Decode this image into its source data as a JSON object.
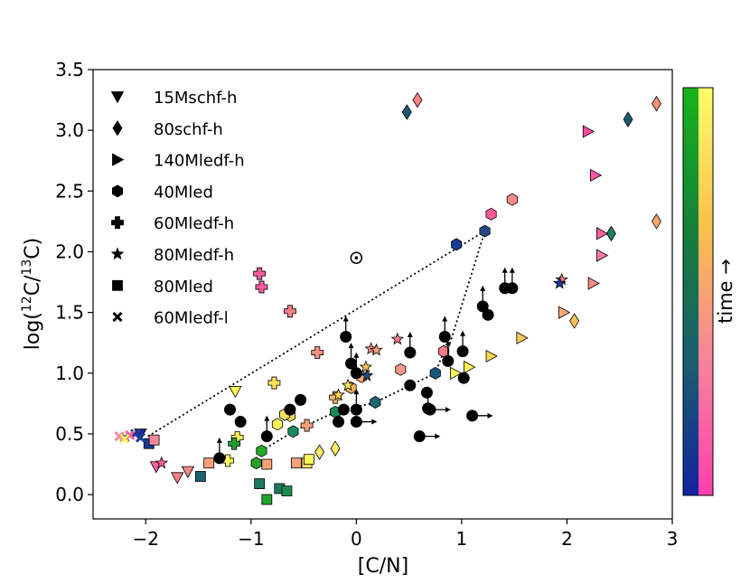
{
  "chart_data": {
    "type": "scatter",
    "xlabel": "[C/N]",
    "ylabel_parts": {
      "pre": "log(",
      "sup1": "12",
      "mid": "C/",
      "sup2": "13",
      "post": "C)"
    },
    "xlim": [
      -2.5,
      3.0
    ],
    "ylim": [
      -0.2,
      3.5
    ],
    "xticks": [
      -2,
      -1,
      0,
      1,
      2,
      3
    ],
    "xtick_labels": [
      "−2",
      "−1",
      "0",
      "1",
      "2",
      "3"
    ],
    "yticks": [
      0.0,
      0.5,
      1.0,
      1.5,
      2.0,
      2.5,
      3.0,
      3.5
    ],
    "ytick_labels": [
      "0.0",
      "0.5",
      "1.0",
      "1.5",
      "2.0",
      "2.5",
      "3.0",
      "3.5"
    ],
    "colorbar_label": "time →",
    "colorbar_left_colors": [
      "#12239e",
      "#1a5e6e",
      "#15803a",
      "#18b41c"
    ],
    "colorbar_right_colors": [
      "#ff3fae",
      "#f6839c",
      "#f8c14a",
      "#fffd6a"
    ],
    "legend": [
      {
        "label": "15Mschf-h",
        "marker": "tri_down"
      },
      {
        "label": "80schf-h",
        "marker": "thin_diamond"
      },
      {
        "label": "140Mledf-h",
        "marker": "tri_right"
      },
      {
        "label": "40Mled",
        "marker": "hexagon"
      },
      {
        "label": "60Mledf-h",
        "marker": "plus"
      },
      {
        "label": "80Mledf-h",
        "marker": "star"
      },
      {
        "label": "80Mled",
        "marker": "square"
      },
      {
        "label": "60Mledf-l",
        "marker": "x"
      }
    ],
    "series": [
      {
        "name": "15Mschf-h",
        "marker": "tri_down",
        "points": [
          {
            "x": -2.05,
            "y": 0.5,
            "c": "#1b2a96"
          },
          {
            "x": -1.9,
            "y": 0.23,
            "c": "#ff5fa0"
          },
          {
            "x": -1.7,
            "y": 0.14,
            "c": "#f47d8a"
          },
          {
            "x": -1.6,
            "y": 0.19,
            "c": "#f48a86"
          },
          {
            "x": -1.15,
            "y": 0.85,
            "c": "#fffa4e"
          }
        ]
      },
      {
        "name": "80schf-h",
        "marker": "thin_diamond",
        "points": [
          {
            "x": 0.48,
            "y": 3.15,
            "c": "#1a5a72"
          },
          {
            "x": 0.58,
            "y": 3.25,
            "c": "#f48286"
          },
          {
            "x": 2.58,
            "y": 3.09,
            "c": "#1a5a72"
          },
          {
            "x": 2.85,
            "y": 3.22,
            "c": "#f79378"
          },
          {
            "x": 2.42,
            "y": 2.15,
            "c": "#188060"
          },
          {
            "x": 2.85,
            "y": 2.25,
            "c": "#f8a46e"
          },
          {
            "x": 2.07,
            "y": 1.43,
            "c": "#f9c05c"
          },
          {
            "x": -0.35,
            "y": 0.35,
            "c": "#fbe96a"
          },
          {
            "x": -0.2,
            "y": 0.38,
            "c": "#fbe96a"
          }
        ]
      },
      {
        "name": "140Mledf-h",
        "marker": "tri_right",
        "points": [
          {
            "x": 2.2,
            "y": 2.99,
            "c": "#ff4aa5"
          },
          {
            "x": 2.27,
            "y": 2.63,
            "c": "#ff57a3"
          },
          {
            "x": 2.33,
            "y": 2.15,
            "c": "#f95e9c"
          },
          {
            "x": 2.33,
            "y": 1.97,
            "c": "#f6799a"
          },
          {
            "x": 2.25,
            "y": 1.74,
            "c": "#f68b88"
          },
          {
            "x": 1.97,
            "y": 1.5,
            "c": "#f9a86e"
          },
          {
            "x": 1.57,
            "y": 1.29,
            "c": "#fbc65a"
          },
          {
            "x": 1.28,
            "y": 1.14,
            "c": "#fcd555"
          },
          {
            "x": 1.07,
            "y": 1.05,
            "c": "#fdf250"
          },
          {
            "x": 0.94,
            "y": 1.0,
            "c": "#fdf660"
          }
        ]
      },
      {
        "name": "40Mled",
        "marker": "hexagon",
        "points": [
          {
            "x": 1.48,
            "y": 2.43,
            "c": "#f78a88"
          },
          {
            "x": 1.28,
            "y": 2.31,
            "c": "#ff5a98"
          },
          {
            "x": 1.22,
            "y": 2.17,
            "c": "#234a86"
          },
          {
            "x": 0.95,
            "y": 2.06,
            "c": "#1a3a96"
          },
          {
            "x": 0.83,
            "y": 1.18,
            "c": "#f47a8a"
          },
          {
            "x": 0.75,
            "y": 1.0,
            "c": "#1a5a7a"
          },
          {
            "x": 0.42,
            "y": 1.03,
            "c": "#f49a8a"
          },
          {
            "x": 0.05,
            "y": 0.97,
            "c": "#f7a86e"
          },
          {
            "x": 0.18,
            "y": 0.76,
            "c": "#1a6a6c"
          },
          {
            "x": -0.05,
            "y": 0.88,
            "c": "#f9b25e"
          },
          {
            "x": -0.2,
            "y": 0.68,
            "c": "#188a58"
          },
          {
            "x": -0.6,
            "y": 0.52,
            "c": "#1a8a5a"
          },
          {
            "x": -0.63,
            "y": 0.65,
            "c": "#fbd95a"
          },
          {
            "x": -0.68,
            "y": 0.66,
            "c": "#fde062"
          },
          {
            "x": -0.75,
            "y": 0.58,
            "c": "#fef65a"
          },
          {
            "x": -0.9,
            "y": 0.36,
            "c": "#22aa28"
          },
          {
            "x": -0.95,
            "y": 0.26,
            "c": "#28a02a"
          }
        ]
      },
      {
        "name": "60Mledf-h",
        "marker": "plus",
        "points": [
          {
            "x": -0.92,
            "y": 1.82,
            "c": "#ff5aa0"
          },
          {
            "x": -0.9,
            "y": 1.71,
            "c": "#ff5aa0"
          },
          {
            "x": -0.63,
            "y": 1.51,
            "c": "#f4808a"
          },
          {
            "x": -0.37,
            "y": 1.17,
            "c": "#f88e80"
          },
          {
            "x": -0.78,
            "y": 0.92,
            "c": "#fce25a"
          },
          {
            "x": -0.2,
            "y": 0.8,
            "c": "#fbb868"
          },
          {
            "x": -0.47,
            "y": 0.57,
            "c": "#f9a278"
          },
          {
            "x": -1.13,
            "y": 0.47,
            "c": "#fde85e"
          },
          {
            "x": -1.16,
            "y": 0.42,
            "c": "#20a030"
          },
          {
            "x": -1.22,
            "y": 0.28,
            "c": "#fef65a"
          }
        ]
      },
      {
        "name": "80Mledf-h",
        "marker": "star",
        "points": [
          {
            "x": -1.85,
            "y": 0.26,
            "c": "#ff5aa0"
          },
          {
            "x": 0.39,
            "y": 1.28,
            "c": "#f47a8a"
          },
          {
            "x": 0.14,
            "y": 1.2,
            "c": "#f88e80"
          },
          {
            "x": 0.19,
            "y": 1.19,
            "c": "#f9a278"
          },
          {
            "x": 0.09,
            "y": 1.05,
            "c": "#fbc162"
          },
          {
            "x": 0.1,
            "y": 0.98,
            "c": "#234a86"
          },
          {
            "x": -0.08,
            "y": 0.9,
            "c": "#fde85e"
          },
          {
            "x": -0.17,
            "y": 0.82,
            "c": "#fcd45a"
          },
          {
            "x": 1.95,
            "y": 1.77,
            "c": "#f47a8a"
          },
          {
            "x": 1.93,
            "y": 1.74,
            "c": "#1a3a96"
          }
        ]
      },
      {
        "name": "80Mled",
        "marker": "square",
        "points": [
          {
            "x": -1.97,
            "y": 0.42,
            "c": "#1a3a96"
          },
          {
            "x": -1.92,
            "y": 0.45,
            "c": "#f6879a"
          },
          {
            "x": -1.48,
            "y": 0.15,
            "c": "#1a6070"
          },
          {
            "x": -1.4,
            "y": 0.26,
            "c": "#f9a278"
          },
          {
            "x": -0.92,
            "y": 0.09,
            "c": "#1a7a60"
          },
          {
            "x": -0.85,
            "y": 0.25,
            "c": "#f9a278"
          },
          {
            "x": -0.85,
            "y": -0.04,
            "c": "#22a22c"
          },
          {
            "x": -0.73,
            "y": 0.05,
            "c": "#1a7a60"
          },
          {
            "x": -0.66,
            "y": 0.03,
            "c": "#1a8a50"
          },
          {
            "x": -0.57,
            "y": 0.26,
            "c": "#f9a278"
          },
          {
            "x": -0.47,
            "y": 0.26,
            "c": "#fce25a"
          },
          {
            "x": -0.45,
            "y": 0.29,
            "c": "#fef65a"
          }
        ]
      },
      {
        "name": "60Mledf-l",
        "marker": "x",
        "points": [
          {
            "x": -2.2,
            "y": 0.47,
            "c": "#1a3a96"
          },
          {
            "x": -2.1,
            "y": 0.5,
            "c": "#1a3a96"
          },
          {
            "x": -2.05,
            "y": 0.47,
            "c": "#1a3a96"
          },
          {
            "x": -2.25,
            "y": 0.48,
            "c": "#f6879a"
          },
          {
            "x": -2.15,
            "y": 0.49,
            "c": "#ff5aa0"
          },
          {
            "x": -2.2,
            "y": 0.46,
            "c": "#fde85e"
          }
        ]
      },
      {
        "name": "observations",
        "marker": "dot",
        "points": [
          {
            "x": 1.48,
            "y": 1.7,
            "arrow": "up"
          },
          {
            "x": 1.41,
            "y": 1.7,
            "arrow": "up"
          },
          {
            "x": 1.2,
            "y": 1.55,
            "arrow": "up"
          },
          {
            "x": 1.25,
            "y": 1.48,
            "arrow": ""
          },
          {
            "x": -0.1,
            "y": 1.3,
            "arrow": "up"
          },
          {
            "x": 0.51,
            "y": 1.17,
            "arrow": "up"
          },
          {
            "x": 0.84,
            "y": 1.3,
            "arrow": "up"
          },
          {
            "x": 1.01,
            "y": 1.18,
            "arrow": "up"
          },
          {
            "x": 0.87,
            "y": 1.1,
            "arrow": "up"
          },
          {
            "x": -0.05,
            "y": 1.08,
            "arrow": "up"
          },
          {
            "x": 0.0,
            "y": 1.0,
            "arrow": "up"
          },
          {
            "x": 1.02,
            "y": 0.96,
            "arrow": ""
          },
          {
            "x": 0.51,
            "y": 0.9,
            "arrow": ""
          },
          {
            "x": 0.67,
            "y": 0.84,
            "arrow": ""
          },
          {
            "x": 0.68,
            "y": 0.71,
            "arrow": "up"
          },
          {
            "x": 0.7,
            "y": 0.7,
            "arrow": "right"
          },
          {
            "x": 0.0,
            "y": 0.7,
            "arrow": "up"
          },
          {
            "x": 0.0,
            "y": 0.6,
            "arrow": "right"
          },
          {
            "x": -0.53,
            "y": 0.78,
            "arrow": ""
          },
          {
            "x": -0.12,
            "y": 0.7,
            "arrow": ""
          },
          {
            "x": -0.17,
            "y": 0.6,
            "arrow": ""
          },
          {
            "x": -1.2,
            "y": 0.7,
            "arrow": ""
          },
          {
            "x": -1.1,
            "y": 0.6,
            "arrow": ""
          },
          {
            "x": -0.63,
            "y": 0.7,
            "arrow": ""
          },
          {
            "x": -0.85,
            "y": 0.48,
            "arrow": "up"
          },
          {
            "x": -1.3,
            "y": 0.3,
            "arrow": "up"
          },
          {
            "x": 0.6,
            "y": 0.48,
            "arrow": "right"
          },
          {
            "x": 1.1,
            "y": 0.65,
            "arrow": "right"
          }
        ]
      },
      {
        "name": "sun",
        "marker": "sun",
        "points": [
          {
            "x": 0.0,
            "y": 1.95
          }
        ]
      }
    ],
    "dotted_lines": [
      [
        {
          "x": -1.98,
          "y": 0.48
        },
        {
          "x": 1.22,
          "y": 2.17
        },
        {
          "x": 0.88,
          "y": 1.22
        }
      ],
      [
        {
          "x": -0.9,
          "y": 0.36
        },
        {
          "x": -0.6,
          "y": 0.52
        },
        {
          "x": -0.2,
          "y": 0.68
        },
        {
          "x": 0.18,
          "y": 0.76
        },
        {
          "x": 0.75,
          "y": 1.0
        },
        {
          "x": 0.83,
          "y": 1.18
        },
        {
          "x": 0.88,
          "y": 1.22
        }
      ]
    ]
  }
}
